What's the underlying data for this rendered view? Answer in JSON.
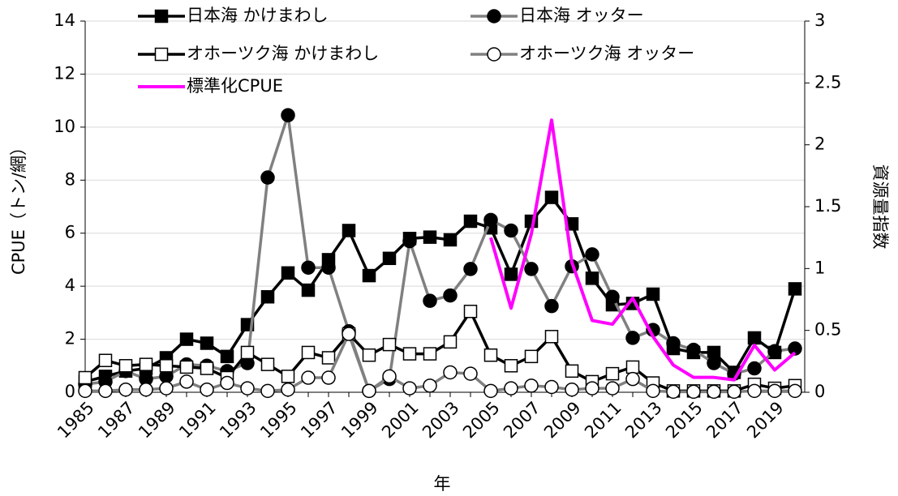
{
  "chart_data": {
    "type": "line",
    "categories": [
      "1985",
      null,
      "1987",
      null,
      "1989",
      null,
      "1991",
      null,
      "1993",
      null,
      "1995",
      null,
      "1997",
      null,
      "1999",
      null,
      "2001",
      null,
      "2003",
      null,
      "2005",
      null,
      "2007",
      null,
      "2009",
      null,
      "2011",
      null,
      "2013",
      null,
      "2015",
      null,
      "2017",
      null,
      "2019",
      null
    ],
    "x_label": "年",
    "y_label": "CPUE（トン/網）",
    "y2_label": "資源量指数",
    "ylim": [
      0,
      14
    ],
    "yticks": [
      0,
      2,
      4,
      6,
      8,
      10,
      12,
      14
    ],
    "y2lim": [
      0,
      3
    ],
    "y2ticks": [
      0,
      0.5,
      1,
      1.5,
      2,
      2.5,
      3
    ],
    "grid": true,
    "series": [
      {
        "name": "日本海 かけまわし",
        "color": "#000000",
        "marker": "square",
        "marker_fill": "#000000",
        "values": [
          0.4,
          0.6,
          0.8,
          0.9,
          1.3,
          2.0,
          1.85,
          1.35,
          2.55,
          3.6,
          4.5,
          3.85,
          5.0,
          6.1,
          4.4,
          5.05,
          5.8,
          5.85,
          5.75,
          6.45,
          6.2,
          4.45,
          6.45,
          7.35,
          6.35,
          4.3,
          3.3,
          3.35,
          3.7,
          1.65,
          1.5,
          1.5,
          0.75,
          2.05,
          1.5,
          3.9
        ]
      },
      {
        "name": "日本海 オッター",
        "color": "#808080",
        "marker": "circle",
        "marker_fill": "#000000",
        "values": [
          0.3,
          0.4,
          0.8,
          0.5,
          0.6,
          1.05,
          1.0,
          0.8,
          1.1,
          8.1,
          10.45,
          4.7,
          4.7,
          2.3,
          0.05,
          0.5,
          5.7,
          3.45,
          3.65,
          4.65,
          6.5,
          6.1,
          4.65,
          3.25,
          4.75,
          5.2,
          3.6,
          2.05,
          2.35,
          1.85,
          1.6,
          1.1,
          0.7,
          0.9,
          1.55,
          1.65
        ]
      },
      {
        "name": "オホーツク海 かけまわし",
        "color": "#000000",
        "marker": "square",
        "marker_fill": "#ffffff",
        "values": [
          0.55,
          1.2,
          1.0,
          1.05,
          1.0,
          0.95,
          0.9,
          0.55,
          1.5,
          1.05,
          0.6,
          1.5,
          1.3,
          2.2,
          1.4,
          1.8,
          1.45,
          1.45,
          1.9,
          3.05,
          1.4,
          1.0,
          1.35,
          2.1,
          0.8,
          0.4,
          0.7,
          0.95,
          0.35,
          0.05,
          0.05,
          0.05,
          0.05,
          0.3,
          0.15,
          0.25
        ]
      },
      {
        "name": "オホーツク海 オッター",
        "color": "#808080",
        "marker": "circle",
        "marker_fill": "#ffffff",
        "values": [
          0.05,
          0.05,
          0.1,
          0.1,
          0.15,
          0.4,
          0.1,
          0.35,
          0.15,
          0.05,
          0.1,
          0.55,
          0.55,
          2.2,
          0.05,
          0.6,
          0.15,
          0.25,
          0.75,
          0.7,
          0.05,
          0.15,
          0.25,
          0.2,
          0.1,
          0.15,
          0.15,
          0.5,
          0.05,
          0.02,
          0.02,
          0.02,
          0.02,
          0.05,
          0.05,
          0.05
        ]
      },
      {
        "name": "標準化CPUE",
        "color": "#ff00ff",
        "axis": "y2",
        "values": [
          null,
          null,
          null,
          null,
          null,
          null,
          null,
          null,
          null,
          null,
          null,
          null,
          null,
          null,
          null,
          null,
          null,
          null,
          null,
          null,
          1.25,
          0.68,
          1.28,
          2.2,
          1.05,
          0.58,
          0.55,
          0.76,
          0.45,
          0.22,
          0.12,
          0.12,
          0.1,
          0.38,
          0.18,
          0.32
        ]
      }
    ]
  }
}
